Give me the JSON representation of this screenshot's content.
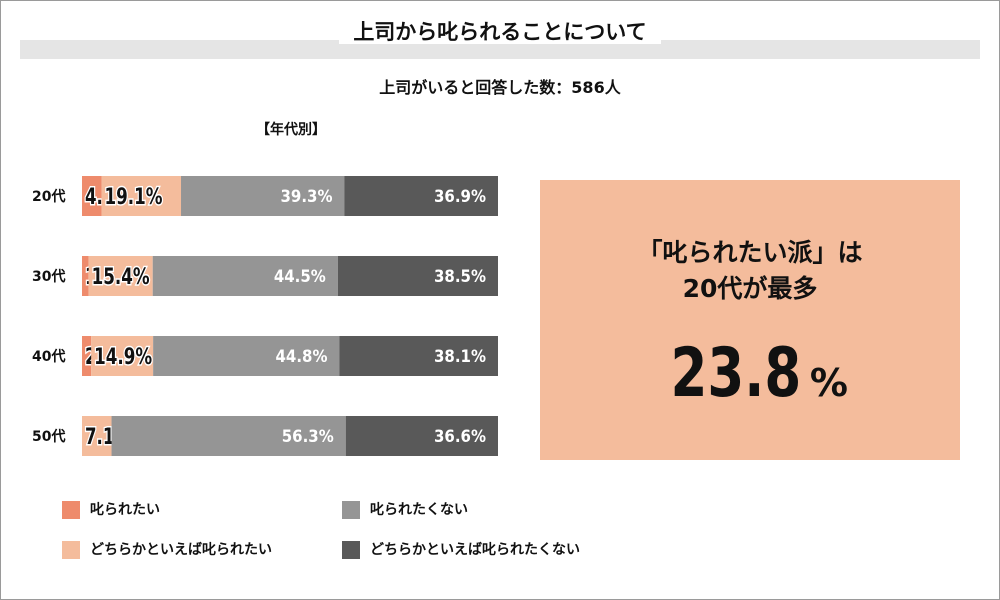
{
  "title": "上司から叱られることについて",
  "subtitle": "上司がいると回答した数：586人",
  "group_label": "【年代別】",
  "colors": {
    "scolded_want": "#ee8b6c",
    "somewhat_scolded_want": "#f4bc9c",
    "scolded_not_want": "#959595",
    "somewhat_scolded_not_want": "#595959"
  },
  "chart_data": {
    "type": "bar",
    "orientation": "horizontal",
    "stacked": true,
    "normalized": true,
    "categories": [
      "20代",
      "30代",
      "40代",
      "50代"
    ],
    "series": [
      {
        "name": "叱られたい",
        "values": [
          4.7,
          1.6,
          2.2,
          0
        ],
        "labels": [
          "4.7%",
          "1.6%",
          "2.2%",
          ""
        ]
      },
      {
        "name": "どちらかといえば叱られたい",
        "values": [
          19.1,
          15.4,
          14.9,
          7.1
        ],
        "labels": [
          "19.1%",
          "15.4%",
          "14.9%",
          "7.1%"
        ]
      },
      {
        "name": "叱られたくない",
        "values": [
          39.3,
          44.5,
          44.8,
          56.3
        ],
        "labels": [
          "39.3%",
          "44.5%",
          "44.8%",
          "56.3%"
        ]
      },
      {
        "name": "どちらかといえば叱られたくない",
        "values": [
          36.9,
          38.5,
          38.1,
          36.6
        ],
        "labels": [
          "36.9%",
          "38.5%",
          "38.1%",
          "36.6%"
        ]
      }
    ],
    "legend_position": "bottom",
    "grid": false
  },
  "legend": [
    {
      "label": "叱られたい",
      "color": "#ee8b6c"
    },
    {
      "label": "叱られたくない",
      "color": "#959595"
    },
    {
      "label": "どちらかといえば叱られたい",
      "color": "#f4bc9c"
    },
    {
      "label": "どちらかといえば叱られたくない",
      "color": "#595959"
    }
  ],
  "highlight": {
    "line1": "「叱られたい派」は",
    "line2": "20代が最多",
    "value": "23.8",
    "unit": "%"
  }
}
